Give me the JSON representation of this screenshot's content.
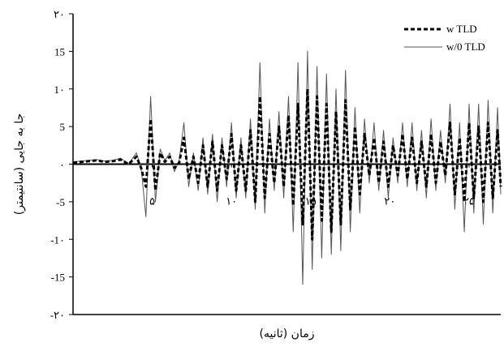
{
  "chart_data": {
    "type": "line",
    "title": "",
    "xlabel": "زمان (ثانیه)",
    "ylabel": "جا به جایی (سانتیمتر)",
    "xlim": [
      0,
      27
    ],
    "ylim": [
      -20,
      20
    ],
    "x_ticks": [
      {
        "value": 5,
        "label": "۵"
      },
      {
        "value": 10,
        "label": "۱۰"
      },
      {
        "value": 15,
        "label": "۱۵"
      },
      {
        "value": 20,
        "label": "۲۰"
      },
      {
        "value": 25,
        "label": "۲۵"
      }
    ],
    "y_ticks": [
      {
        "value": 20,
        "label": "۲۰"
      },
      {
        "value": 15,
        "label": "15"
      },
      {
        "value": 10,
        "label": "1۰"
      },
      {
        "value": 5,
        "label": "5"
      },
      {
        "value": 0,
        "label": "۰"
      },
      {
        "value": -5,
        "label": "-5"
      },
      {
        "value": -10,
        "label": "-1۰"
      },
      {
        "value": -15,
        "label": "-15"
      },
      {
        "value": -20,
        "label": "-۲۰"
      }
    ],
    "grid": false,
    "legend_position": "top-right",
    "series": [
      {
        "name": "w TLD",
        "style": "dashed",
        "color": "#000000",
        "x": [
          0,
          0.5,
          1.0,
          1.5,
          2.0,
          2.5,
          3.0,
          3.5,
          4.0,
          4.3,
          4.6,
          4.9,
          5.2,
          5.5,
          5.8,
          6.1,
          6.4,
          6.7,
          7.0,
          7.3,
          7.6,
          7.9,
          8.2,
          8.5,
          8.8,
          9.1,
          9.4,
          9.7,
          10.0,
          10.3,
          10.6,
          10.9,
          11.2,
          11.5,
          11.8,
          12.1,
          12.4,
          12.7,
          13.0,
          13.3,
          13.6,
          13.9,
          14.2,
          14.5,
          14.8,
          15.1,
          15.4,
          15.7,
          16.0,
          16.3,
          16.6,
          16.9,
          17.2,
          17.5,
          17.8,
          18.1,
          18.4,
          18.7,
          19.0,
          19.3,
          19.6,
          19.9,
          20.2,
          20.5,
          20.8,
          21.1,
          21.4,
          21.7,
          22.0,
          22.3,
          22.6,
          22.9,
          23.2,
          23.5,
          23.8,
          24.1,
          24.4,
          24.7,
          25.0,
          25.3,
          25.6,
          25.9,
          26.2,
          26.5,
          26.8,
          27.0
        ],
        "y": [
          0.2,
          0.3,
          0.4,
          0.5,
          0.3,
          0.4,
          0.6,
          0.0,
          1.0,
          -0.5,
          -3,
          6,
          -3.5,
          1.5,
          0.3,
          1.0,
          -0.5,
          0.2,
          3.5,
          -2.0,
          1.0,
          -2.5,
          2.5,
          -3.0,
          3.0,
          -3.5,
          2.5,
          -2.0,
          4.0,
          -3.5,
          2.5,
          -3.5,
          4.5,
          -5.0,
          9.0,
          -4.5,
          4.0,
          -2.5,
          5.0,
          -3.0,
          6.5,
          -5.5,
          8.0,
          -8.0,
          10.0,
          -10.0,
          9.0,
          -7.5,
          8.0,
          -9.0,
          7.0,
          -8.0,
          8.5,
          -6.0,
          5.0,
          -4.0,
          4.0,
          -1.5,
          3.5,
          -2.5,
          3.0,
          -3.0,
          2.5,
          -1.5,
          4.0,
          -2.0,
          3.5,
          -2.5,
          3.0,
          -3.0,
          4.0,
          -2.5,
          3.0,
          -1.5,
          5.5,
          -4.0,
          3.5,
          -5.0,
          5.5,
          -4.5,
          5.0,
          -5.0,
          5.5,
          -4.5,
          4.5,
          -3.0
        ]
      },
      {
        "name": "w/0 TLD",
        "style": "solid",
        "color": "#555555",
        "x": [
          0,
          0.5,
          1.0,
          1.5,
          2.0,
          2.5,
          3.0,
          3.5,
          4.0,
          4.3,
          4.6,
          4.9,
          5.2,
          5.5,
          5.8,
          6.1,
          6.4,
          6.7,
          7.0,
          7.3,
          7.6,
          7.9,
          8.2,
          8.5,
          8.8,
          9.1,
          9.4,
          9.7,
          10.0,
          10.3,
          10.6,
          10.9,
          11.2,
          11.5,
          11.8,
          12.1,
          12.4,
          12.7,
          13.0,
          13.3,
          13.6,
          13.9,
          14.2,
          14.5,
          14.8,
          15.1,
          15.4,
          15.7,
          16.0,
          16.3,
          16.6,
          16.9,
          17.2,
          17.5,
          17.8,
          18.1,
          18.4,
          18.7,
          19.0,
          19.3,
          19.6,
          19.9,
          20.2,
          20.5,
          20.8,
          21.1,
          21.4,
          21.7,
          22.0,
          22.3,
          22.6,
          22.9,
          23.2,
          23.5,
          23.8,
          24.1,
          24.4,
          24.7,
          25.0,
          25.3,
          25.6,
          25.9,
          26.2,
          26.5,
          26.8,
          27.0
        ],
        "y": [
          0.3,
          0.4,
          0.5,
          0.6,
          0.4,
          0.5,
          0.8,
          0.0,
          1.5,
          -0.5,
          -7,
          9,
          -5,
          2.0,
          0.5,
          1.5,
          -1.0,
          0.5,
          5.5,
          -3.0,
          1.5,
          -3.5,
          3.5,
          -4.0,
          4.0,
          -5.0,
          3.5,
          -3.0,
          5.5,
          -4.5,
          3.5,
          -4.5,
          6.0,
          -6.0,
          13.5,
          -6.5,
          6.0,
          -3.5,
          7.0,
          -4.5,
          9.0,
          -9.0,
          13.5,
          -16.0,
          15.0,
          -14.0,
          13.0,
          -12.5,
          12.0,
          -12.0,
          10.0,
          -11.5,
          12.5,
          -9.0,
          7.5,
          -6.5,
          6.0,
          -2.5,
          5.5,
          -3.5,
          4.5,
          -4.5,
          3.5,
          -2.5,
          5.5,
          -3.0,
          5.5,
          -3.5,
          4.5,
          -4.5,
          6.0,
          -3.5,
          4.5,
          -2.5,
          8.0,
          -6.0,
          5.5,
          -9.0,
          8.0,
          -6.5,
          8.0,
          -8.0,
          8.5,
          -6.5,
          7.5,
          -4.0
        ]
      }
    ]
  }
}
